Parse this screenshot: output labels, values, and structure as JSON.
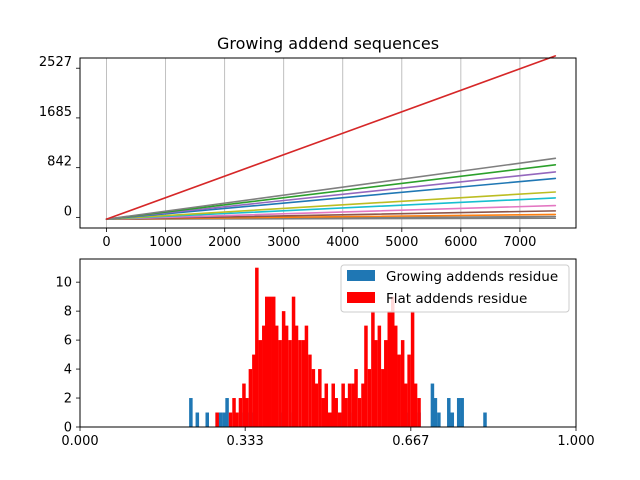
{
  "chart_data": [
    {
      "type": "line",
      "title": "Growing addend sequences",
      "xlabel": "",
      "ylabel": "",
      "xlim": [
        -450,
        7950
      ],
      "ylim": [
        -180,
        2700
      ],
      "grid": "x-only",
      "xticks": [
        0,
        1000,
        2000,
        3000,
        4000,
        5000,
        6000,
        7000
      ],
      "xtick_labels": [
        "0",
        "1000",
        "2000",
        "3000",
        "4000",
        "5000",
        "6000",
        "7000"
      ],
      "yticks": [
        0,
        842,
        1685,
        2527
      ],
      "ytick_labels": [
        "0",
        "842",
        "1685",
        "2527"
      ],
      "x_start": 0,
      "x_end": 7600,
      "series": [
        {
          "color": "#d62728",
          "values": [
            -30,
            2735
          ]
        },
        {
          "color": "#7f7f7f",
          "values": [
            -30,
            1000
          ]
        },
        {
          "color": "#2ca02c",
          "values": [
            -30,
            890
          ]
        },
        {
          "color": "#9467bd",
          "values": [
            -30,
            770
          ]
        },
        {
          "color": "#1f77b4",
          "values": [
            -30,
            660
          ]
        },
        {
          "color": "#bcbd22",
          "values": [
            -30,
            430
          ]
        },
        {
          "color": "#17becf",
          "values": [
            -30,
            330
          ]
        },
        {
          "color": "#e377c2",
          "values": [
            -30,
            200
          ]
        },
        {
          "color": "#8c564b",
          "values": [
            -30,
            110
          ]
        },
        {
          "color": "#ff7f0e",
          "values": [
            -30,
            50
          ]
        },
        {
          "color": "#7f7f7f",
          "values": [
            -30,
            15
          ]
        },
        {
          "color": "#7f7f7f",
          "values": [
            -30,
            -15
          ]
        }
      ]
    },
    {
      "type": "bar",
      "title": "",
      "xlabel": "",
      "ylabel": "",
      "xlim": [
        0,
        1
      ],
      "ylim": [
        0,
        11.6
      ],
      "xticks": [
        0,
        0.333,
        0.667,
        1
      ],
      "xtick_labels": [
        "0.000",
        "0.333",
        "0.667",
        "1.000"
      ],
      "yticks": [
        0,
        2,
        4,
        6,
        8,
        10
      ],
      "ytick_labels": [
        "0",
        "2",
        "4",
        "6",
        "8",
        "10"
      ],
      "legend_position": "top-right",
      "bin_width": 0.00667,
      "series": [
        {
          "name": "Growing addends residue",
          "color": "#1f77b4",
          "bins": [
            [
              0.22,
              2
            ],
            [
              0.233,
              1
            ],
            [
              0.253,
              1
            ],
            [
              0.273,
              1
            ],
            [
              0.28,
              1
            ],
            [
              0.287,
              1
            ],
            [
              0.293,
              2
            ],
            [
              0.327,
              1
            ],
            [
              0.34,
              1
            ],
            [
              0.347,
              1
            ],
            [
              0.4,
              1
            ],
            [
              0.427,
              1
            ],
            [
              0.52,
              1
            ],
            [
              0.547,
              1
            ],
            [
              0.653,
              1
            ],
            [
              0.68,
              1
            ],
            [
              0.707,
              3
            ],
            [
              0.713,
              2
            ],
            [
              0.72,
              1
            ],
            [
              0.74,
              2
            ],
            [
              0.747,
              1
            ],
            [
              0.76,
              2
            ],
            [
              0.767,
              2
            ],
            [
              0.813,
              1
            ]
          ]
        },
        {
          "name": "Flat addends residue",
          "color": "#ff0000",
          "bins": [
            [
              0.273,
              1
            ],
            [
              0.3,
              1
            ],
            [
              0.307,
              2
            ],
            [
              0.313,
              1
            ],
            [
              0.32,
              2
            ],
            [
              0.327,
              3
            ],
            [
              0.333,
              2
            ],
            [
              0.34,
              4
            ],
            [
              0.347,
              5
            ],
            [
              0.353,
              11
            ],
            [
              0.36,
              6
            ],
            [
              0.367,
              7
            ],
            [
              0.373,
              9
            ],
            [
              0.38,
              9
            ],
            [
              0.387,
              9
            ],
            [
              0.393,
              7
            ],
            [
              0.4,
              6
            ],
            [
              0.407,
              8
            ],
            [
              0.413,
              7
            ],
            [
              0.42,
              6
            ],
            [
              0.427,
              9
            ],
            [
              0.433,
              7
            ],
            [
              0.44,
              6
            ],
            [
              0.447,
              6
            ],
            [
              0.453,
              7
            ],
            [
              0.46,
              5
            ],
            [
              0.467,
              4
            ],
            [
              0.473,
              3
            ],
            [
              0.48,
              4
            ],
            [
              0.487,
              2
            ],
            [
              0.493,
              3
            ],
            [
              0.5,
              1
            ],
            [
              0.507,
              3
            ],
            [
              0.513,
              2
            ],
            [
              0.52,
              1
            ],
            [
              0.527,
              3
            ],
            [
              0.533,
              2
            ],
            [
              0.54,
              3
            ],
            [
              0.547,
              3
            ],
            [
              0.553,
              4
            ],
            [
              0.56,
              2
            ],
            [
              0.567,
              3
            ],
            [
              0.573,
              7
            ],
            [
              0.58,
              4
            ],
            [
              0.587,
              8
            ],
            [
              0.593,
              6
            ],
            [
              0.6,
              7
            ],
            [
              0.607,
              4
            ],
            [
              0.613,
              6
            ],
            [
              0.62,
              8
            ],
            [
              0.627,
              9
            ],
            [
              0.633,
              7
            ],
            [
              0.64,
              5
            ],
            [
              0.647,
              6
            ],
            [
              0.653,
              3
            ],
            [
              0.66,
              5
            ],
            [
              0.667,
              8
            ],
            [
              0.673,
              3
            ],
            [
              0.68,
              2
            ]
          ]
        }
      ]
    }
  ]
}
